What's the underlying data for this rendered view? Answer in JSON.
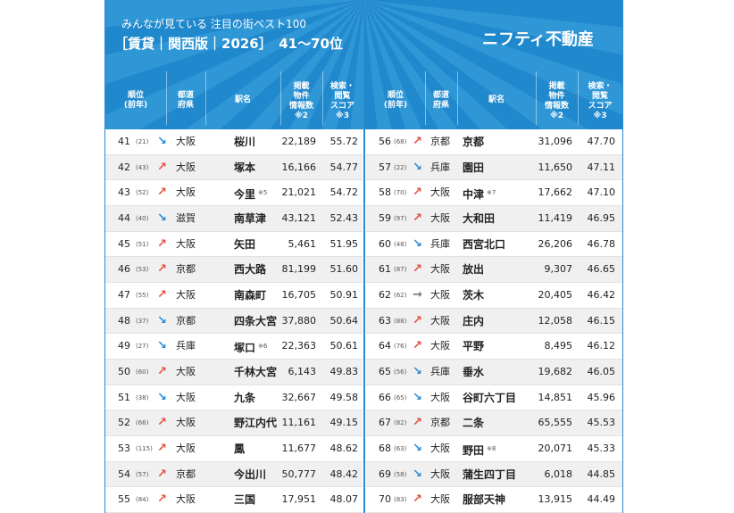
{
  "header": {
    "subtitle": "みんなが見ている 注目の街ベスト100",
    "title": "［賃貸｜関西版｜2026］　41〜70位",
    "brand": "ニフティ不動産"
  },
  "columns": [
    [
      "順位",
      "(前年)"
    ],
    [
      "都道",
      "府県"
    ],
    [
      "駅名"
    ],
    [
      "掲載",
      "物件",
      "情報数",
      "※2"
    ],
    [
      "検索・",
      "閲覧",
      "スコア",
      "※3"
    ]
  ],
  "left_rows": [
    {
      "rank": "41",
      "prev": "(21)",
      "trend": "↘",
      "pref": "大阪",
      "station": "桜川",
      "count": "22,189",
      "score": "55.72"
    },
    {
      "rank": "42",
      "prev": "(43)",
      "trend": "↗",
      "pref": "大阪",
      "station": "塚本",
      "count": "16,166",
      "score": "54.77"
    },
    {
      "rank": "43",
      "prev": "(52)",
      "trend": "↗",
      "pref": "大阪",
      "station": "今里",
      "note": "※5",
      "count": "21,021",
      "score": "54.72"
    },
    {
      "rank": "44",
      "prev": "(40)",
      "trend": "↘",
      "pref": "滋賀",
      "station": "南草津",
      "count": "43,121",
      "score": "52.43"
    },
    {
      "rank": "45",
      "prev": "(51)",
      "trend": "↗",
      "pref": "大阪",
      "station": "矢田",
      "count": "5,461",
      "score": "51.95"
    },
    {
      "rank": "46",
      "prev": "(53)",
      "trend": "↗",
      "pref": "京都",
      "station": "西大路",
      "count": "81,199",
      "score": "51.60"
    },
    {
      "rank": "47",
      "prev": "(55)",
      "trend": "↗",
      "pref": "大阪",
      "station": "南森町",
      "count": "16,705",
      "score": "50.91"
    },
    {
      "rank": "48",
      "prev": "(37)",
      "trend": "↘",
      "pref": "京都",
      "station": "四条大宮",
      "count": "37,880",
      "score": "50.64"
    },
    {
      "rank": "49",
      "prev": "(27)",
      "trend": "↘",
      "pref": "兵庫",
      "station": "塚口",
      "note": "※6",
      "count": "22,363",
      "score": "50.61"
    },
    {
      "rank": "50",
      "prev": "(60)",
      "trend": "↗",
      "pref": "大阪",
      "station": "千林大宮",
      "count": "6,143",
      "score": "49.83"
    },
    {
      "rank": "51",
      "prev": "(38)",
      "trend": "↘",
      "pref": "大阪",
      "station": "九条",
      "count": "32,667",
      "score": "49.58"
    },
    {
      "rank": "52",
      "prev": "(66)",
      "trend": "↗",
      "pref": "大阪",
      "station": "野江内代",
      "count": "11,161",
      "score": "49.15"
    },
    {
      "rank": "53",
      "prev": "(115)",
      "trend": "↗",
      "pref": "大阪",
      "station": "鳳",
      "count": "11,677",
      "score": "48.62"
    },
    {
      "rank": "54",
      "prev": "(57)",
      "trend": "↗",
      "pref": "京都",
      "station": "今出川",
      "count": "50,777",
      "score": "48.42"
    },
    {
      "rank": "55",
      "prev": "(84)",
      "trend": "↗",
      "pref": "大阪",
      "station": "三国",
      "count": "17,951",
      "score": "48.07"
    }
  ],
  "right_rows": [
    {
      "rank": "56",
      "prev": "(68)",
      "trend": "↗",
      "pref": "京都",
      "station": "京都",
      "count": "31,096",
      "score": "47.70"
    },
    {
      "rank": "57",
      "prev": "(22)",
      "trend": "↘",
      "pref": "兵庫",
      "station": "園田",
      "count": "11,650",
      "score": "47.11"
    },
    {
      "rank": "58",
      "prev": "(70)",
      "trend": "↗",
      "pref": "大阪",
      "station": "中津",
      "note": "※7",
      "count": "17,662",
      "score": "47.10"
    },
    {
      "rank": "59",
      "prev": "(97)",
      "trend": "↗",
      "pref": "大阪",
      "station": "大和田",
      "count": "11,419",
      "score": "46.95"
    },
    {
      "rank": "60",
      "prev": "(48)",
      "trend": "↘",
      "pref": "兵庫",
      "station": "西宮北口",
      "count": "26,206",
      "score": "46.78"
    },
    {
      "rank": "61",
      "prev": "(87)",
      "trend": "↗",
      "pref": "大阪",
      "station": "放出",
      "count": "9,307",
      "score": "46.65"
    },
    {
      "rank": "62",
      "prev": "(62)",
      "trend": "→",
      "pref": "大阪",
      "station": "茨木",
      "count": "20,405",
      "score": "46.42"
    },
    {
      "rank": "63",
      "prev": "(88)",
      "trend": "↗",
      "pref": "大阪",
      "station": "庄内",
      "count": "12,058",
      "score": "46.15"
    },
    {
      "rank": "64",
      "prev": "(76)",
      "trend": "↗",
      "pref": "大阪",
      "station": "平野",
      "count": "8,495",
      "score": "46.12"
    },
    {
      "rank": "65",
      "prev": "(56)",
      "trend": "↘",
      "pref": "兵庫",
      "station": "垂水",
      "count": "19,682",
      "score": "46.05"
    },
    {
      "rank": "66",
      "prev": "(65)",
      "trend": "↘",
      "pref": "大阪",
      "station": "谷町六丁目",
      "count": "14,851",
      "score": "45.96"
    },
    {
      "rank": "67",
      "prev": "(82)",
      "trend": "↗",
      "pref": "京都",
      "station": "二条",
      "count": "65,555",
      "score": "45.53"
    },
    {
      "rank": "68",
      "prev": "(63)",
      "trend": "↘",
      "pref": "大阪",
      "station": "野田",
      "note": "※8",
      "count": "20,071",
      "score": "45.33"
    },
    {
      "rank": "69",
      "prev": "(58)",
      "trend": "↘",
      "pref": "大阪",
      "station": "蒲生四丁目",
      "count": "6,018",
      "score": "44.85"
    },
    {
      "rank": "70",
      "prev": "(83)",
      "trend": "↗",
      "pref": "大阪",
      "station": "服部天神",
      "count": "13,915",
      "score": "44.49"
    }
  ]
}
